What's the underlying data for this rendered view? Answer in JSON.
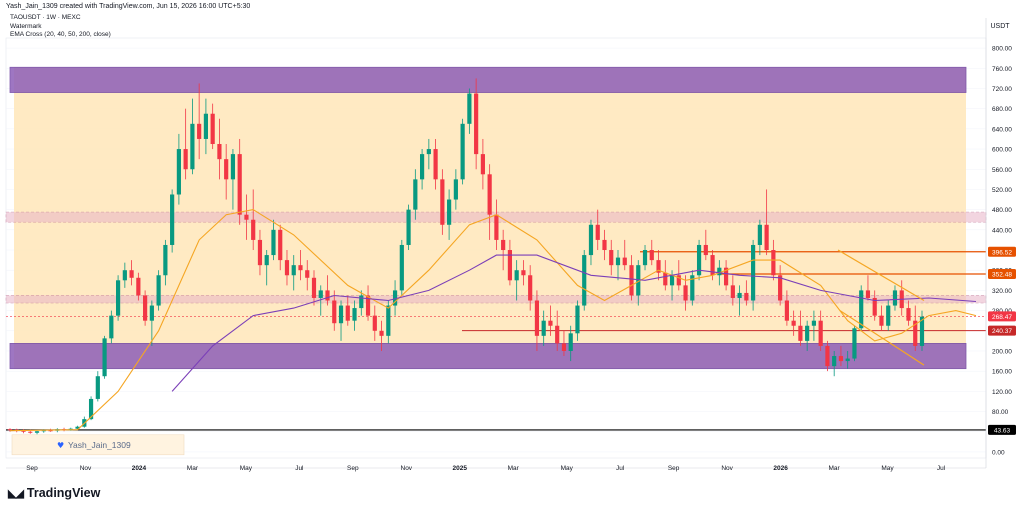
{
  "header": {
    "text": "Yash_Jain_1309 created with TradingView.com, Jun 15, 2026 16:00 UTC+5:30"
  },
  "legend": {
    "symbol": "TAOUSDT · 1W · MEXC",
    "line2": "Watermark",
    "indicator": "EMA Cross (20, 40, 50, 200, close)"
  },
  "watermark": {
    "text": "Yash_Jain_1309"
  },
  "logo": {
    "text": "TradingView"
  },
  "currency_badge": "USDT",
  "colors": {
    "up": "#089981",
    "down": "#f23645",
    "ema_fast": "#f5a623",
    "ema_slow": "#7b3fb8",
    "zone_purple": "#8e5fb8",
    "zone_pink": "#e8b4c8",
    "range_fill": "#ffe6b8",
    "level_line": "#e65100",
    "support_line": "#c62828"
  },
  "chart_data": {
    "type": "candlestick",
    "y_axis": {
      "range": [
        -12,
        820
      ],
      "ticks": [
        "800.00",
        "760.00",
        "720.00",
        "680.00",
        "640.00",
        "600.00",
        "560.00",
        "520.00",
        "480.00",
        "440.00",
        "400.00",
        "360.00",
        "320.00",
        "280.00",
        "240.00",
        "200.00",
        "160.00",
        "120.00",
        "80.00",
        "40.00",
        "0.00"
      ]
    },
    "x_axis": {
      "labels": [
        "Sep",
        "Nov",
        "2024",
        "Mar",
        "May",
        "Jul",
        "Sep",
        "Nov",
        "2025",
        "Mar",
        "May",
        "Jul",
        "Sep",
        "Nov",
        "2026",
        "Mar",
        "May",
        "Jul"
      ],
      "bold_labels": [
        "2024",
        "2025",
        "2026"
      ]
    },
    "price_labels": [
      {
        "value": 396.52,
        "label": "396.52",
        "color": "#e65100"
      },
      {
        "value": 352.48,
        "label": "352.48",
        "color": "#e65100"
      },
      {
        "value": 268.47,
        "label": "268.47",
        "color": "#f23645"
      },
      {
        "value": 240.37,
        "label": "240.37",
        "color": "#c62828"
      },
      {
        "value": 43.63,
        "label": "43.63",
        "color": "#000000"
      }
    ],
    "zones": [
      {
        "kind": "resistance",
        "low": 712,
        "high": 762
      },
      {
        "kind": "pink",
        "low": 455,
        "high": 475
      },
      {
        "kind": "pink",
        "low": 295,
        "high": 310
      },
      {
        "kind": "support",
        "low": 165,
        "high": 215
      }
    ],
    "candles": [
      [
        45,
        47,
        40,
        44
      ],
      [
        44,
        46,
        39,
        42
      ],
      [
        42,
        45,
        37,
        40
      ],
      [
        40,
        44,
        36,
        38
      ],
      [
        38,
        42,
        35,
        41
      ],
      [
        41,
        45,
        38,
        43
      ],
      [
        43,
        46,
        40,
        42
      ],
      [
        42,
        47,
        39,
        45
      ],
      [
        45,
        48,
        41,
        43
      ],
      [
        43,
        48,
        42,
        46
      ],
      [
        46,
        52,
        44,
        50
      ],
      [
        50,
        70,
        48,
        65
      ],
      [
        65,
        110,
        63,
        105
      ],
      [
        105,
        160,
        100,
        150
      ],
      [
        150,
        230,
        145,
        225
      ],
      [
        225,
        280,
        215,
        270
      ],
      [
        270,
        350,
        260,
        340
      ],
      [
        340,
        375,
        325,
        360
      ],
      [
        360,
        380,
        330,
        345
      ],
      [
        345,
        355,
        300,
        310
      ],
      [
        310,
        320,
        250,
        260
      ],
      [
        260,
        300,
        210,
        290
      ],
      [
        290,
        360,
        280,
        350
      ],
      [
        350,
        420,
        330,
        410
      ],
      [
        410,
        520,
        395,
        510
      ],
      [
        510,
        630,
        490,
        600
      ],
      [
        600,
        680,
        540,
        560
      ],
      [
        560,
        700,
        550,
        650
      ],
      [
        650,
        730,
        580,
        620
      ],
      [
        620,
        700,
        590,
        670
      ],
      [
        670,
        690,
        600,
        610
      ],
      [
        610,
        660,
        540,
        580
      ],
      [
        580,
        610,
        500,
        540
      ],
      [
        540,
        600,
        480,
        590
      ],
      [
        590,
        620,
        450,
        470
      ],
      [
        470,
        510,
        420,
        460
      ],
      [
        460,
        520,
        400,
        420
      ],
      [
        420,
        440,
        350,
        370
      ],
      [
        370,
        400,
        330,
        390
      ],
      [
        390,
        460,
        380,
        440
      ],
      [
        440,
        450,
        360,
        380
      ],
      [
        380,
        400,
        330,
        350
      ],
      [
        350,
        390,
        320,
        370
      ],
      [
        370,
        400,
        340,
        360
      ],
      [
        360,
        380,
        320,
        345
      ],
      [
        345,
        360,
        290,
        305
      ],
      [
        305,
        330,
        270,
        320
      ],
      [
        320,
        350,
        290,
        300
      ],
      [
        300,
        320,
        240,
        255
      ],
      [
        255,
        300,
        220,
        290
      ],
      [
        290,
        310,
        250,
        260
      ],
      [
        260,
        300,
        240,
        285
      ],
      [
        285,
        320,
        270,
        310
      ],
      [
        310,
        330,
        260,
        270
      ],
      [
        270,
        290,
        220,
        240
      ],
      [
        240,
        260,
        200,
        230
      ],
      [
        230,
        300,
        215,
        290
      ],
      [
        290,
        340,
        270,
        320
      ],
      [
        320,
        420,
        310,
        410
      ],
      [
        410,
        490,
        400,
        480
      ],
      [
        480,
        560,
        460,
        540
      ],
      [
        540,
        600,
        520,
        590
      ],
      [
        590,
        620,
        560,
        600
      ],
      [
        600,
        620,
        520,
        540
      ],
      [
        540,
        560,
        430,
        450
      ],
      [
        450,
        520,
        420,
        500
      ],
      [
        500,
        560,
        480,
        540
      ],
      [
        540,
        660,
        530,
        650
      ],
      [
        650,
        720,
        630,
        710
      ],
      [
        710,
        740,
        560,
        590
      ],
      [
        590,
        620,
        520,
        550
      ],
      [
        550,
        570,
        420,
        470
      ],
      [
        470,
        500,
        400,
        420
      ],
      [
        420,
        440,
        360,
        400
      ],
      [
        400,
        420,
        330,
        340
      ],
      [
        340,
        380,
        300,
        360
      ],
      [
        360,
        380,
        330,
        350
      ],
      [
        350,
        370,
        280,
        300
      ],
      [
        300,
        320,
        200,
        230
      ],
      [
        230,
        280,
        210,
        260
      ],
      [
        260,
        290,
        230,
        250
      ],
      [
        250,
        280,
        200,
        215
      ],
      [
        215,
        240,
        190,
        200
      ],
      [
        200,
        250,
        180,
        235
      ],
      [
        235,
        300,
        220,
        290
      ],
      [
        290,
        400,
        280,
        390
      ],
      [
        390,
        460,
        370,
        450
      ],
      [
        450,
        480,
        400,
        420
      ],
      [
        420,
        440,
        380,
        400
      ],
      [
        400,
        420,
        350,
        370
      ],
      [
        370,
        400,
        340,
        385
      ],
      [
        385,
        420,
        360,
        370
      ],
      [
        370,
        390,
        300,
        310
      ],
      [
        310,
        380,
        290,
        370
      ],
      [
        370,
        410,
        360,
        400
      ],
      [
        400,
        420,
        370,
        380
      ],
      [
        380,
        400,
        340,
        355
      ],
      [
        355,
        380,
        320,
        330
      ],
      [
        330,
        360,
        300,
        350
      ],
      [
        350,
        380,
        320,
        330
      ],
      [
        330,
        350,
        280,
        300
      ],
      [
        300,
        360,
        290,
        350
      ],
      [
        350,
        420,
        340,
        410
      ],
      [
        410,
        440,
        380,
        390
      ],
      [
        390,
        400,
        340,
        350
      ],
      [
        350,
        380,
        330,
        365
      ],
      [
        365,
        380,
        320,
        330
      ],
      [
        330,
        350,
        290,
        305
      ],
      [
        305,
        330,
        270,
        315
      ],
      [
        315,
        340,
        290,
        300
      ],
      [
        300,
        420,
        280,
        410
      ],
      [
        410,
        460,
        390,
        450
      ],
      [
        450,
        520,
        390,
        400
      ],
      [
        400,
        420,
        340,
        350
      ],
      [
        350,
        370,
        290,
        300
      ],
      [
        300,
        320,
        250,
        260
      ],
      [
        260,
        280,
        230,
        250
      ],
      [
        250,
        280,
        210,
        220
      ],
      [
        220,
        260,
        200,
        250
      ],
      [
        250,
        280,
        220,
        260
      ],
      [
        260,
        280,
        200,
        210
      ],
      [
        210,
        220,
        160,
        170
      ],
      [
        170,
        200,
        150,
        190
      ],
      [
        190,
        210,
        170,
        180
      ],
      [
        180,
        200,
        165,
        185
      ],
      [
        185,
        250,
        180,
        245
      ],
      [
        245,
        330,
        240,
        320
      ],
      [
        320,
        350,
        300,
        305
      ],
      [
        305,
        320,
        260,
        270
      ],
      [
        270,
        290,
        240,
        250
      ],
      [
        250,
        300,
        240,
        290
      ],
      [
        290,
        330,
        280,
        320
      ],
      [
        320,
        340,
        270,
        285
      ],
      [
        285,
        300,
        250,
        260
      ],
      [
        260,
        290,
        200,
        210
      ],
      [
        210,
        280,
        200,
        268
      ]
    ],
    "ema_fast": [
      [
        0,
        42
      ],
      [
        10,
        44
      ],
      [
        16,
        120
      ],
      [
        22,
        240
      ],
      [
        28,
        420
      ],
      [
        32,
        470
      ],
      [
        36,
        480
      ],
      [
        42,
        430
      ],
      [
        50,
        330
      ],
      [
        56,
        285
      ],
      [
        62,
        360
      ],
      [
        68,
        450
      ],
      [
        72,
        470
      ],
      [
        78,
        420
      ],
      [
        84,
        330
      ],
      [
        88,
        300
      ],
      [
        92,
        330
      ],
      [
        96,
        360
      ],
      [
        100,
        340
      ],
      [
        104,
        350
      ],
      [
        110,
        380
      ],
      [
        114,
        380
      ],
      [
        120,
        330
      ],
      [
        124,
        260
      ],
      [
        128,
        220
      ],
      [
        132,
        235
      ],
      [
        136,
        270
      ],
      [
        140,
        280
      ],
      [
        143,
        270
      ]
    ],
    "ema_slow": [
      [
        24,
        120
      ],
      [
        30,
        210
      ],
      [
        36,
        270
      ],
      [
        42,
        285
      ],
      [
        48,
        310
      ],
      [
        56,
        300
      ],
      [
        62,
        320
      ],
      [
        68,
        360
      ],
      [
        72,
        390
      ],
      [
        78,
        390
      ],
      [
        86,
        350
      ],
      [
        94,
        340
      ],
      [
        102,
        360
      ],
      [
        108,
        350
      ],
      [
        114,
        345
      ],
      [
        120,
        320
      ],
      [
        128,
        300
      ],
      [
        136,
        305
      ],
      [
        143,
        298
      ]
    ]
  }
}
